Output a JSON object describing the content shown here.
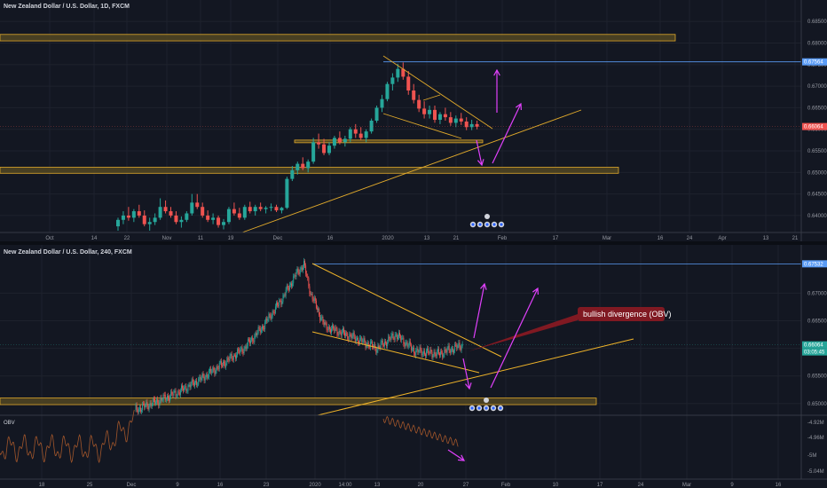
{
  "chart_data": [
    {
      "type": "candlestick",
      "title": "New Zealand Dollar / U.S. Dollar, 1D, FXCM",
      "x_ticks": [
        "Oct",
        "14",
        "22",
        "Nov",
        "11",
        "19",
        "Dec",
        "16",
        "2020",
        "13",
        "21",
        "Feb",
        "17",
        "Mar",
        "16",
        "24",
        "Apr",
        "13",
        "21"
      ],
      "y_ticks": [
        "0.68500",
        "0.68000",
        "0.67500",
        "0.67000",
        "0.66500",
        "0.66000",
        "0.65500",
        "0.65000",
        "0.64500",
        "0.64000"
      ],
      "ylim": [
        0.6369,
        0.6871
      ],
      "price_labels": [
        {
          "text": "0.67564",
          "value": 0.67564,
          "color": "#5b9cf6"
        },
        {
          "text": "0.66064",
          "value": 0.66064,
          "color": "#ef5350"
        }
      ],
      "candles": [
        [
          0.6375,
          0.6395,
          0.6365,
          0.639
        ],
        [
          0.639,
          0.641,
          0.638,
          0.64
        ],
        [
          0.64,
          0.642,
          0.6388,
          0.6395
        ],
        [
          0.6395,
          0.6415,
          0.6385,
          0.641
        ],
        [
          0.641,
          0.6425,
          0.6395,
          0.64
        ],
        [
          0.64,
          0.6412,
          0.6375,
          0.638
        ],
        [
          0.638,
          0.6395,
          0.6365,
          0.6385
        ],
        [
          0.6385,
          0.6405,
          0.6378,
          0.6395
        ],
        [
          0.6395,
          0.644,
          0.639,
          0.642
        ],
        [
          0.642,
          0.6435,
          0.6405,
          0.641
        ],
        [
          0.641,
          0.642,
          0.6395,
          0.64
        ],
        [
          0.64,
          0.641,
          0.638,
          0.6385
        ],
        [
          0.6385,
          0.6398,
          0.6372,
          0.639
        ],
        [
          0.639,
          0.641,
          0.6385,
          0.6405
        ],
        [
          0.6405,
          0.645,
          0.64,
          0.643
        ],
        [
          0.643,
          0.645,
          0.6415,
          0.642
        ],
        [
          0.642,
          0.643,
          0.6395,
          0.64
        ],
        [
          0.64,
          0.6412,
          0.6385,
          0.639
        ],
        [
          0.639,
          0.6405,
          0.638,
          0.6395
        ],
        [
          0.6395,
          0.64,
          0.6372,
          0.6378
        ],
        [
          0.6378,
          0.6392,
          0.6368,
          0.6385
        ],
        [
          0.6385,
          0.642,
          0.638,
          0.6415
        ],
        [
          0.6415,
          0.643,
          0.64,
          0.6405
        ],
        [
          0.6405,
          0.6418,
          0.639,
          0.6395
        ],
        [
          0.6395,
          0.6425,
          0.639,
          0.642
        ],
        [
          0.642,
          0.6432,
          0.6405,
          0.641
        ],
        [
          0.641,
          0.6425,
          0.64,
          0.642
        ],
        [
          0.642,
          0.643,
          0.641,
          0.6415
        ],
        [
          0.6415,
          0.6422,
          0.6405,
          0.6418
        ],
        [
          0.6418,
          0.6428,
          0.641,
          0.642
        ],
        [
          0.642,
          0.6425,
          0.6408,
          0.6412
        ],
        [
          0.6412,
          0.642,
          0.6405,
          0.6418
        ],
        [
          0.6418,
          0.649,
          0.6415,
          0.6485
        ],
        [
          0.6485,
          0.6515,
          0.648,
          0.6505
        ],
        [
          0.6505,
          0.6525,
          0.6495,
          0.652
        ],
        [
          0.652,
          0.6535,
          0.6505,
          0.651
        ],
        [
          0.651,
          0.653,
          0.65,
          0.6525
        ],
        [
          0.6525,
          0.658,
          0.652,
          0.657
        ],
        [
          0.657,
          0.659,
          0.6555,
          0.6565
        ],
        [
          0.6565,
          0.6578,
          0.654,
          0.6545
        ],
        [
          0.6545,
          0.657,
          0.654,
          0.6562
        ],
        [
          0.6562,
          0.6585,
          0.6555,
          0.658
        ],
        [
          0.658,
          0.6595,
          0.6565,
          0.657
        ],
        [
          0.657,
          0.6585,
          0.656,
          0.6578
        ],
        [
          0.6578,
          0.6605,
          0.657,
          0.66
        ],
        [
          0.66,
          0.6612,
          0.658,
          0.659
        ],
        [
          0.659,
          0.6605,
          0.6575,
          0.658
        ],
        [
          0.658,
          0.66,
          0.657,
          0.6595
        ],
        [
          0.6595,
          0.6625,
          0.659,
          0.662
        ],
        [
          0.662,
          0.6655,
          0.6615,
          0.665
        ],
        [
          0.665,
          0.668,
          0.664,
          0.667
        ],
        [
          0.667,
          0.671,
          0.6665,
          0.6705
        ],
        [
          0.6705,
          0.673,
          0.669,
          0.672
        ],
        [
          0.672,
          0.6752,
          0.671,
          0.674
        ],
        [
          0.674,
          0.6755,
          0.6715,
          0.6722
        ],
        [
          0.6722,
          0.6735,
          0.668,
          0.669
        ],
        [
          0.669,
          0.6705,
          0.666,
          0.6668
        ],
        [
          0.6668,
          0.668,
          0.664,
          0.6648
        ],
        [
          0.6648,
          0.6665,
          0.6625,
          0.6635
        ],
        [
          0.6635,
          0.6655,
          0.6625,
          0.6645
        ],
        [
          0.6645,
          0.6655,
          0.6615,
          0.6622
        ],
        [
          0.6622,
          0.664,
          0.6612,
          0.6635
        ],
        [
          0.6635,
          0.665,
          0.662,
          0.6628
        ],
        [
          0.6628,
          0.664,
          0.6608,
          0.6615
        ],
        [
          0.6615,
          0.6632,
          0.6605,
          0.6625
        ],
        [
          0.6625,
          0.6638,
          0.661,
          0.6618
        ],
        [
          0.6618,
          0.6628,
          0.6598,
          0.6605
        ],
        [
          0.6605,
          0.6622,
          0.6598,
          0.6612
        ],
        [
          0.6612,
          0.662,
          0.66,
          0.6606
        ]
      ],
      "zones": [
        {
          "from": 0.6805,
          "to": 0.682
        },
        {
          "from": 0.6498,
          "to": 0.6512
        },
        {
          "from": 0.657,
          "to": 0.6575
        }
      ]
    },
    {
      "type": "candlestick",
      "title": "New Zealand Dollar / U.S. Dollar, 240, FXCM",
      "x_ticks": [
        "18",
        "25",
        "Dec",
        "9",
        "16",
        "23",
        "2020",
        "14:00",
        "13",
        "20",
        "27",
        "Feb",
        "10",
        "17",
        "24",
        "Mar",
        "9",
        "16"
      ],
      "y_ticks": [
        "0.67000",
        "0.66500",
        "0.66000",
        "0.65500",
        "0.65000"
      ],
      "ylim": [
        0.6482,
        0.6765
      ],
      "price_labels": [
        {
          "text": "0.67532",
          "value": 0.67532,
          "color": "#5b9cf6"
        },
        {
          "text": "0.66064",
          "value": 0.66064,
          "color": "#26a69a"
        },
        {
          "text": "03:05:45",
          "value": 0.6599,
          "color": "#26a69a"
        }
      ],
      "annotation": "bullish divergence (OBV)",
      "zones": [
        {
          "from": 0.6498,
          "to": 0.651
        }
      ],
      "indicator": {
        "name": "OBV",
        "y_ticks": [
          "-4.92M",
          "-4.96M",
          "-5M",
          "-5.04M"
        ]
      }
    }
  ]
}
